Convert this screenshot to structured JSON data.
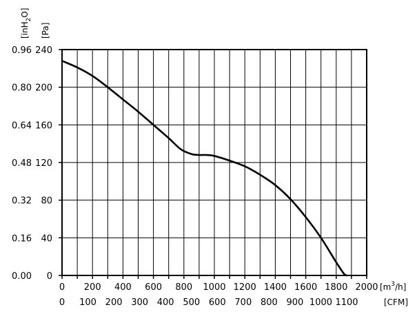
{
  "chart_data": {
    "type": "line",
    "title": "",
    "x_primary": {
      "unit": "[m³/h]",
      "unit_base": "[m",
      "unit_sup": "3",
      "unit_tail": "/h]",
      "range": [
        0,
        2000
      ],
      "ticks": [
        "0",
        "200",
        "400",
        "600",
        "800",
        "1000",
        "1200",
        "1400",
        "1600",
        "1800",
        "2000"
      ]
    },
    "x_secondary": {
      "unit": "[CFM]",
      "ticks": [
        "0",
        "100",
        "200",
        "300",
        "400",
        "500",
        "600",
        "700",
        "800",
        "900",
        "1000",
        "1100"
      ]
    },
    "y_primary": {
      "unit": "[Pa]",
      "range": [
        0,
        240
      ],
      "ticks": [
        "0",
        "40",
        "80",
        "120",
        "160",
        "200",
        "240"
      ]
    },
    "y_secondary": {
      "unit": "[inH₂O]",
      "unit_base": "[inH",
      "unit_sub": "2",
      "unit_tail": "O]",
      "ticks": [
        "0.00",
        "0.16",
        "0.32",
        "0.48",
        "0.64",
        "0.80",
        "0.96"
      ]
    },
    "grid": true,
    "legend": "none",
    "line_color": "#000000",
    "series": [
      {
        "x": [
          0,
          100,
          200,
          300,
          400,
          500,
          600,
          700,
          780,
          850,
          900,
          950,
          1000,
          1100,
          1200,
          1300,
          1400,
          1500,
          1600,
          1700,
          1800,
          1850,
          1870
        ],
        "y": [
          228,
          221,
          212,
          200,
          187,
          174,
          160,
          146,
          134,
          129,
          128,
          128,
          127,
          122,
          116,
          107,
          96,
          81,
          62,
          40,
          14,
          2,
          0
        ]
      }
    ]
  }
}
